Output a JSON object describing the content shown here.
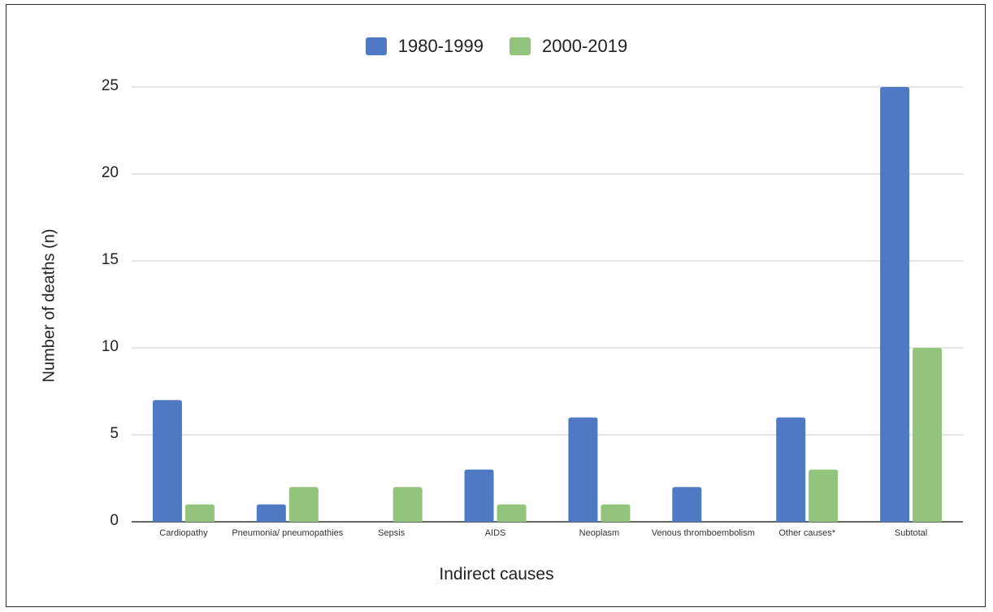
{
  "chart_data": {
    "type": "bar",
    "xlabel": "Indirect causes",
    "ylabel": "Number of deaths (n)",
    "ylim": [
      0,
      25
    ],
    "yticks": [
      "0",
      "5",
      "10",
      "15",
      "20",
      "25"
    ],
    "grid": true,
    "legend_position": "top-center",
    "categories": [
      "Cardiopathy",
      "Pneumonia/ pneumopathies",
      "Sepsis",
      "AIDS",
      "Neoplasm",
      "Venous thromboembolism",
      "Other causes*",
      "Subtotal"
    ],
    "series": [
      {
        "name": "1980-1999",
        "color": "#5079c4",
        "values": [
          7,
          1,
          0,
          3,
          6,
          2,
          6,
          25
        ]
      },
      {
        "name": "2000-2019",
        "color": "#93c47d",
        "values": [
          1,
          2,
          2,
          1,
          1,
          0,
          3,
          10
        ]
      }
    ]
  }
}
